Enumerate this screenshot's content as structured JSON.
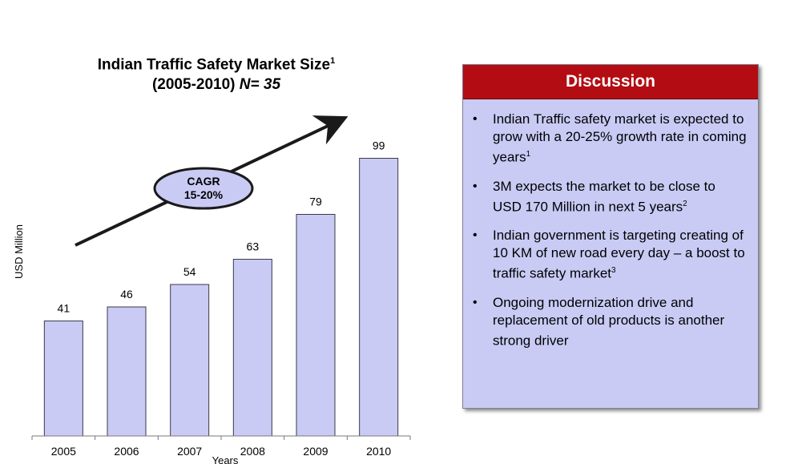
{
  "chart_data": {
    "type": "bar",
    "title": "Indian Traffic Safety Market Size",
    "title_superscript": "1",
    "subtitle": "(2005-2010)",
    "sample_label": "N= 35",
    "categories": [
      "2005",
      "2006",
      "2007",
      "2008",
      "2009",
      "2010"
    ],
    "values": [
      41,
      46,
      54,
      63,
      79,
      99
    ],
    "xlabel": "Years",
    "ylabel": "USD Million",
    "ylim": [
      0,
      110
    ],
    "grid": false,
    "bar_color": "#c9cbf5",
    "annotation": {
      "line1": "CAGR",
      "line2": "15-20%"
    }
  },
  "discussion": {
    "title": "Discussion",
    "header_color": "#b30c12",
    "panel_color": "#c9cbf5",
    "items": [
      {
        "text": "Indian Traffic safety market is expected to grow with a 20-25% growth rate in coming years",
        "sup": "1"
      },
      {
        "text": "3M expects the market to be close to USD 170 Million in next 5 years",
        "sup": "2"
      },
      {
        "text": "Indian government is targeting creating of 10 KM of new road every day – a boost to traffic safety market",
        "sup": "3"
      },
      {
        "text": "Ongoing modernization drive and replacement of old products is another strong driver",
        "sup": ""
      }
    ]
  }
}
